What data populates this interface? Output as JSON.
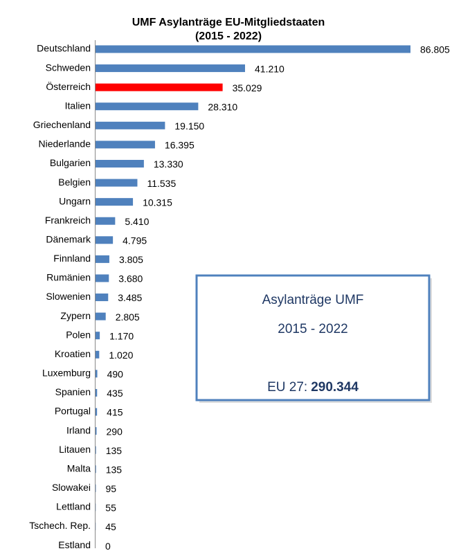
{
  "chart_data": {
    "type": "bar",
    "orientation": "horizontal",
    "title": [
      "UMF Asylanträge EU-Mitgliedstaaten",
      "(2015 - 2022)"
    ],
    "categories": [
      "Deutschland",
      "Schweden",
      "Österreich",
      "Italien",
      "Griechenland",
      "Niederlande",
      "Bulgarien",
      "Belgien",
      "Ungarn",
      "Frankreich",
      "Dänemark",
      "Finnland",
      "Rumänien",
      "Slowenien",
      "Zypern",
      "Polen",
      "Kroatien",
      "Luxemburg",
      "Spanien",
      "Portugal",
      "Irland",
      "Litauen",
      "Malta",
      "Slowakei",
      "Lettland",
      "Tschech. Rep.",
      "Estland"
    ],
    "values": [
      86805,
      41210,
      35029,
      28310,
      19150,
      16395,
      13330,
      11535,
      10315,
      5410,
      4795,
      3805,
      3680,
      3485,
      2805,
      1170,
      1020,
      490,
      435,
      415,
      290,
      135,
      135,
      95,
      55,
      45,
      0
    ],
    "value_labels": [
      "86.805",
      "41.210",
      "35.029",
      "28.310",
      "19.150",
      "16.395",
      "13.330",
      "11.535",
      "10.315",
      "5.410",
      "4.795",
      "3.805",
      "3.680",
      "3.485",
      "2.805",
      "1.170",
      "1.020",
      "490",
      "435",
      "415",
      "290",
      "135",
      "135",
      "95",
      "55",
      "45",
      "0"
    ],
    "colors": [
      "#4f81bd",
      "#4f81bd",
      "#ff0000",
      "#4f81bd",
      "#4f81bd",
      "#4f81bd",
      "#4f81bd",
      "#4f81bd",
      "#4f81bd",
      "#4f81bd",
      "#4f81bd",
      "#4f81bd",
      "#4f81bd",
      "#4f81bd",
      "#4f81bd",
      "#4f81bd",
      "#4f81bd",
      "#4f81bd",
      "#4f81bd",
      "#4f81bd",
      "#4f81bd",
      "#4f81bd",
      "#4f81bd",
      "#4f81bd",
      "#4f81bd",
      "#4f81bd",
      "#4f81bd"
    ],
    "annotation": {
      "lines": [
        "Asylanträge UMF",
        "2015 - 2022"
      ],
      "total_label": "EU 27:",
      "total": "290.344"
    }
  }
}
